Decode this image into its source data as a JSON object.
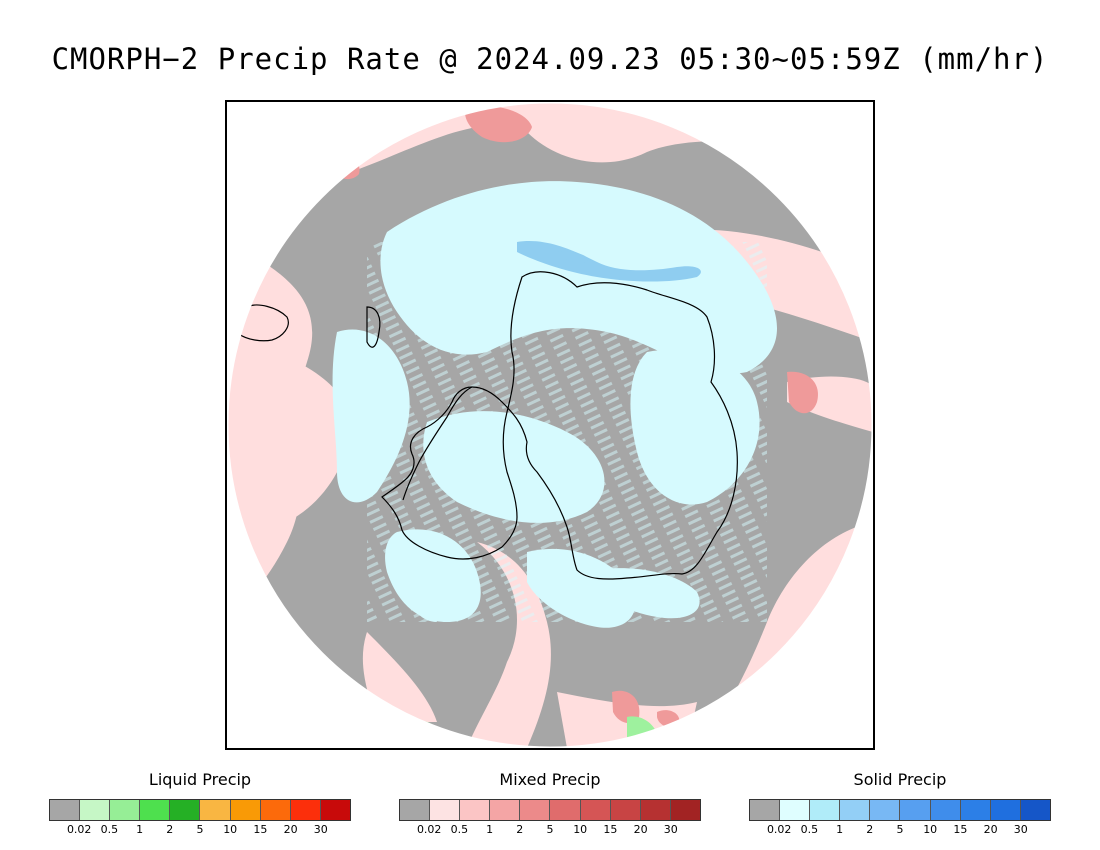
{
  "title": "CMORPH−2 Precip Rate @ 2024.09.23 05:30~05:59Z (mm/hr)",
  "map": {
    "projection": "south polar stereographic",
    "colors": {
      "no_precip": "#a6a6a6",
      "mixed_light": "#ffdede",
      "solid_light": "#d6fafe",
      "solid_medium": "#8fcdf0",
      "solid_strong": "#5aa9ea",
      "mixed_medium": "#ef9a9a",
      "mixed_strong": "#d96a6a",
      "liquid_light": "#9ef19e",
      "liquid_medium": "#4ee04e",
      "coastline": "#000000"
    }
  },
  "legends": [
    {
      "title": "Liquid Precip",
      "colors": [
        "#a6a6a6",
        "#c6f7c6",
        "#96ee96",
        "#4ee04e",
        "#25b025",
        "#f9b642",
        "#f99a06",
        "#fc6a0b",
        "#fc2f0b",
        "#c80a0a"
      ],
      "ticks": [
        "0.02",
        "0.5",
        "1",
        "2",
        "5",
        "10",
        "15",
        "20",
        "30"
      ]
    },
    {
      "title": "Mixed Precip",
      "colors": [
        "#a6a6a6",
        "#fde3e3",
        "#fbc5c5",
        "#f4a5a5",
        "#ec8a8a",
        "#e06c6c",
        "#d55555",
        "#c84444",
        "#b63131",
        "#a22323"
      ],
      "ticks": [
        "0.02",
        "0.5",
        "1",
        "2",
        "5",
        "10",
        "15",
        "20",
        "30"
      ]
    },
    {
      "title": "Solid Precip",
      "colors": [
        "#a6a6a6",
        "#dffeff",
        "#b0ecf9",
        "#93cff6",
        "#78b8f4",
        "#579ff0",
        "#3f8deb",
        "#2c7fe7",
        "#1f6fdf",
        "#1556c8"
      ],
      "ticks": [
        "0.02",
        "0.5",
        "1",
        "2",
        "5",
        "10",
        "15",
        "20",
        "30"
      ]
    }
  ]
}
